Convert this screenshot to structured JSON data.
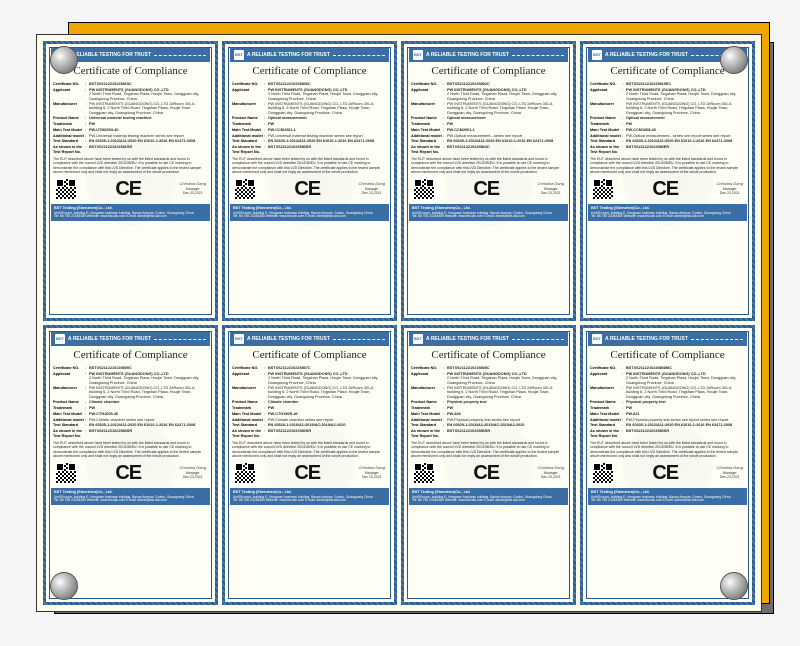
{
  "brand": "BST",
  "header_text": "A RELIABLE TESTING FOR TRUST",
  "title": "Certificate of Compliance",
  "ce_mark": "CE",
  "footer_company": "BST Testing (Shenzhen)Co., Ltd.",
  "footer_address": "Unit09 room, building E, Hongwan business building, Baoan Avenue, Gushu, Guangdong China",
  "footer_contact": "Tel: 86 755 23248484 Website: www.bst-lab.com E-mail: admin@bst-lab.com",
  "statement": "The EUT described above have been tested by us with the listed standards and found in compliance with the council LVD directive 2014/35/EU. It is possible to use CE marking to demonstrate the compliance with this LVD Directive. The certificate applies to the tested sample above mentioned only and shall not imply an assessment of the whole production.",
  "signature": {
    "name": "Christina Dang",
    "role": "Manager",
    "date": "Dec.23,2021"
  },
  "field_labels": {
    "cert_no": "Certificate NO.",
    "applicant": "Applicant",
    "manufacturer": "Manufacturer",
    "product": "Product Name",
    "trademark": "Trademark",
    "model": "Main Test Model",
    "add_model": "Additional model",
    "standard": "Test Standard",
    "shown_as": "As shown in the Test Report No."
  },
  "common": {
    "applicant": "PW INSTRUMENTS (GUANGDONG) CO.,LTD",
    "applicant_addr": "2 North Third Road, Tingshan Plaza, Houjie Town, Dongguan city, Guangdong Province, China",
    "manufacturer": "PW INSTRUMENTS (GUANGDONG) CO.,LTD    2#Room 301-6, building 6, 2 North Third Road, Tingshan Plaza, Houjie Town, Dongguan city, Guangdong Province, China",
    "trademark": "PW"
  },
  "certs": [
    {
      "cert_no": "BSTXS2112210225815C",
      "product": "Universal material testing machine",
      "model": "PW-UTM2003-40",
      "add_model": "PW-Universal material testing machine series see report",
      "standard": "EN 60335-1:2012/A11:2020   EN 61010-1:2016   EN 62471:2008",
      "report": "BSTXS211221022581SR"
    },
    {
      "cert_no": "BSTXS2112210225806C",
      "product": "Optical measurement",
      "model": "PW-CCM1001-1",
      "add_model": "PW-Universal material testing machine series see report",
      "standard": "EN 60335-1:2012/A11:2020   EN 61010-1:2016   EN 62471:2008",
      "report": "BSTXS211221022580SR"
    },
    {
      "cert_no": "BSTXS2112210225802C",
      "product": "Optical measurement",
      "model": "PW-CCM2001-1",
      "add_model": "PW-Optical measurement - series see report",
      "standard": "EN 60335-1:2012/A11:2020   EN 61010-1:2016   EN 62471:2008",
      "report": "BSTXS2112210225804C"
    },
    {
      "cert_no": "BSTXS2112210225810EC",
      "product": "Optical measurement",
      "model": "PW-CCM1008-40",
      "add_model": "PW-Optical measurement - series see report series see report",
      "standard": "EN 60335-1:2012/A11:2020   EN 61010-1:2016   EN 62471:2008",
      "report": "BSTXS211221022580ER"
    },
    {
      "cert_no": "BSTXS2112210225805C",
      "product": "Climate chamber",
      "model": "PW-CTH1005-40",
      "add_model": "PW-Climate chamber series see report",
      "standard": "EN 60335-1:2012/A11:2020   EN 61010-1:2016   EN 62471:2008",
      "report": "BSTXS211221022580SR"
    },
    {
      "cert_no": "BSTXS2112210225807C",
      "product": "Climate chamber",
      "model": "PW-CTH150R-40",
      "add_model": "PW-Climate chamber series see report",
      "standard": "EN 60528-1:2016/A1:2019/AC:2019/A2:2020",
      "report": "BSTXS211221022580SR"
    },
    {
      "cert_no": "BSTXS2112210225805C",
      "product": "Physical property test",
      "model": "PW-468",
      "add_model": "PW-Physical property test series see report",
      "standard": "EN 60528-1:2016/A1:2019/AC:2019/A2:2020",
      "report": "BSTXS211221022580SR"
    },
    {
      "cert_no": "BSTXS2112210225808MC",
      "product": "Physical property test",
      "model": "PW-821",
      "add_model": "PW-Physical property test series see report series see report",
      "standard": "EN 60335-1:2012/A11:2020   EN 61010-1:2016   EN 62471:2008",
      "report": "BSTXS211221022580SR"
    }
  ]
}
